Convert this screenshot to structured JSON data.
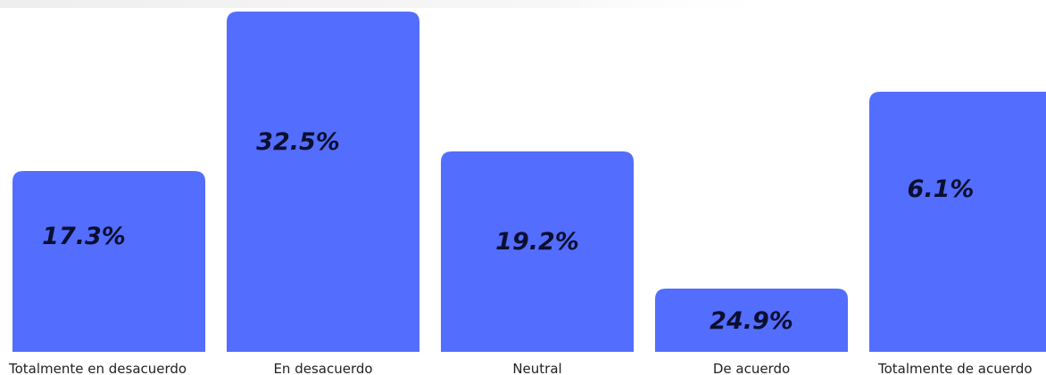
{
  "chart_data": {
    "type": "bar",
    "categories": [
      "Totalmente en desacuerdo",
      "En desacuerdo",
      "Neutral",
      "De acuerdo",
      "Totalmente de acuerdo"
    ],
    "values": [
      17.3,
      32.5,
      19.2,
      24.9,
      6.1
    ],
    "data_labels": [
      "17.3%",
      "32.5%",
      "19.2%",
      "24.9%",
      "6.1%"
    ],
    "title": "",
    "xlabel": "",
    "ylabel": "",
    "grid": false,
    "bar_color": "#536dfe",
    "label_color": "#0b0f30"
  }
}
